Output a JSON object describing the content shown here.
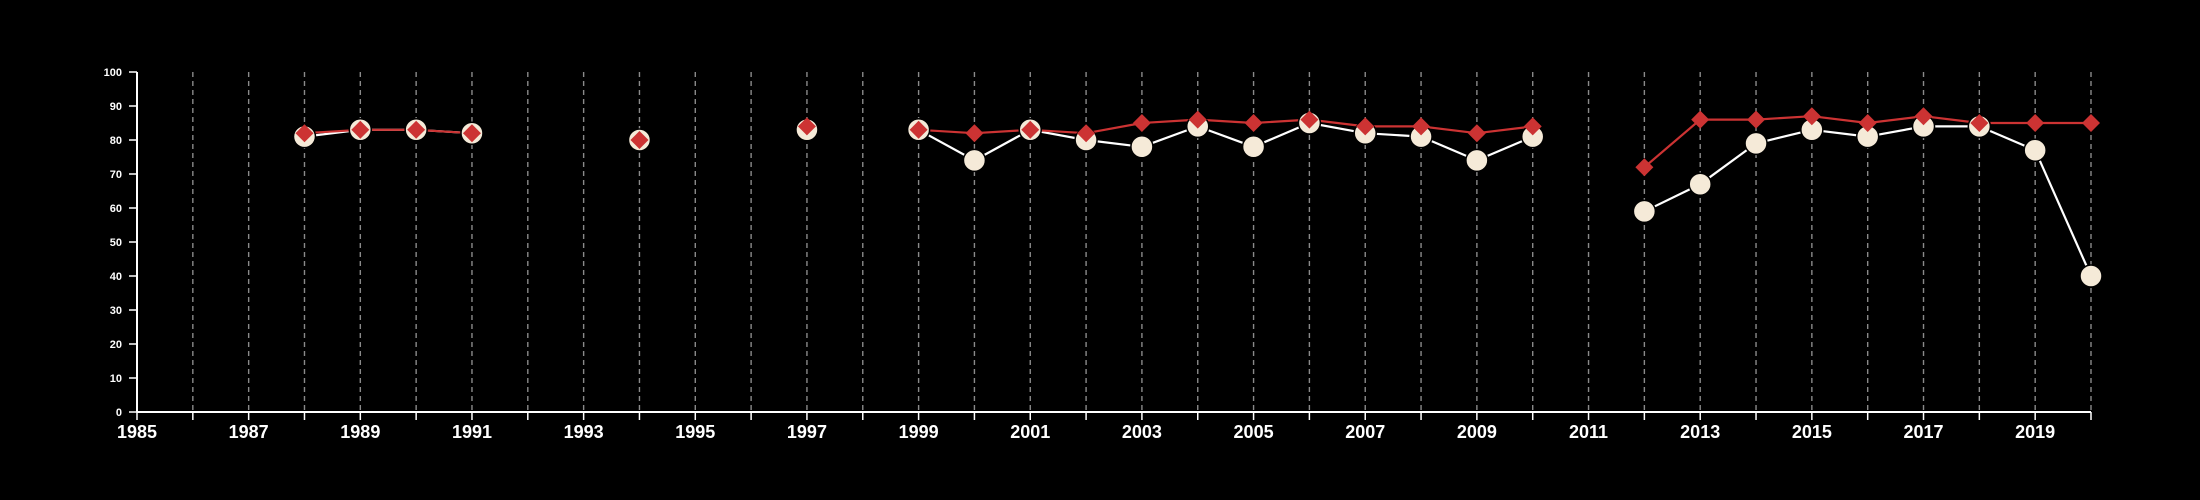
{
  "chart_data": {
    "type": "line",
    "background": "#000000",
    "x_ticks": [
      "1985",
      "1987",
      "1989",
      "1991",
      "1993",
      "1995",
      "1997",
      "1999",
      "2001",
      "2003",
      "2005",
      "2007",
      "2009",
      "2011",
      "2013",
      "2015",
      "2017",
      "2019"
    ],
    "y_ticks": [
      "0",
      "10",
      "20",
      "30",
      "40",
      "50",
      "60",
      "70",
      "80",
      "90",
      "100"
    ],
    "xlim": [
      1985,
      2020
    ],
    "ylim": [
      0,
      100
    ],
    "grid": "vertical dashed lines at each year",
    "series": [
      {
        "marker": "circle",
        "color": "#f5ead8",
        "line_color": "#ffffff",
        "segments": [
          [
            [
              1988,
              81
            ],
            [
              1989,
              83
            ],
            [
              1990,
              83
            ],
            [
              1991,
              82
            ]
          ],
          [
            [
              1994,
              80
            ]
          ],
          [
            [
              1997,
              83
            ]
          ],
          [
            [
              1999,
              83
            ],
            [
              2000,
              74
            ],
            [
              2001,
              83
            ],
            [
              2002,
              80
            ],
            [
              2003,
              78
            ],
            [
              2004,
              84
            ],
            [
              2005,
              78
            ],
            [
              2006,
              85
            ],
            [
              2007,
              82
            ],
            [
              2008,
              81
            ],
            [
              2009,
              74
            ],
            [
              2010,
              81
            ]
          ],
          [
            [
              2012,
              59
            ],
            [
              2013,
              67
            ],
            [
              2014,
              79
            ],
            [
              2015,
              83
            ],
            [
              2016,
              81
            ],
            [
              2017,
              84
            ],
            [
              2018,
              84
            ],
            [
              2019,
              77
            ],
            [
              2020,
              40
            ]
          ]
        ]
      },
      {
        "marker": "diamond",
        "color": "#cc3333",
        "line_color": "#cc3333",
        "segments": [
          [
            [
              1988,
              82
            ],
            [
              1989,
              83
            ],
            [
              1990,
              83
            ],
            [
              1991,
              82
            ]
          ],
          [
            [
              1994,
              80
            ]
          ],
          [
            [
              1997,
              84
            ]
          ],
          [
            [
              1999,
              83
            ],
            [
              2000,
              82
            ],
            [
              2001,
              83
            ],
            [
              2002,
              82
            ],
            [
              2003,
              85
            ],
            [
              2004,
              86
            ],
            [
              2005,
              85
            ],
            [
              2006,
              86
            ],
            [
              2007,
              84
            ],
            [
              2008,
              84
            ],
            [
              2009,
              82
            ],
            [
              2010,
              84
            ]
          ],
          [
            [
              2012,
              72
            ],
            [
              2013,
              86
            ],
            [
              2014,
              86
            ],
            [
              2015,
              87
            ],
            [
              2016,
              85
            ],
            [
              2017,
              87
            ],
            [
              2018,
              85
            ],
            [
              2019,
              85
            ],
            [
              2020,
              85
            ]
          ]
        ]
      }
    ]
  }
}
